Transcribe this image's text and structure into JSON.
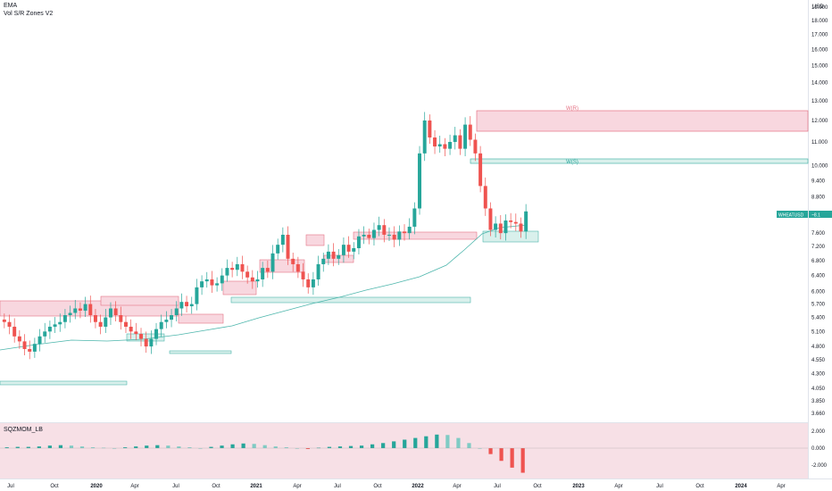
{
  "indicators": {
    "ema_label": "EMA",
    "vol_sr_label": "Vol S/R Zones V2",
    "mom_label": "SQZMOM_LB"
  },
  "currency": "USD",
  "symbol_badge": {
    "label": "WHEATUSD",
    "value": "~8.1",
    "color": "#26a69a"
  },
  "colors": {
    "up": "#26a69a",
    "down": "#ef5350",
    "ema": "#4db6ac",
    "res_zone": "#f8d7df",
    "sup_zone": "#d9f0ec",
    "res_border": "#e57385",
    "sup_border": "#4db6ac",
    "mom_bg": "#f7e0e6"
  },
  "chart_data": [
    {
      "type": "candlestick",
      "title": "",
      "scale": "log",
      "y_tick_labels": [
        "19.000",
        "18.000",
        "17.000",
        "16.000",
        "15.000",
        "14.000",
        "13.000",
        "12.000",
        "11.000",
        "10.000",
        "9.400",
        "8.800",
        "8.200",
        "7.600",
        "7.200",
        "6.800",
        "6.400",
        "6.000",
        "5.700",
        "5.400",
        "5.100",
        "4.800",
        "4.550",
        "4.300",
        "4.050",
        "3.850",
        "3.660"
      ],
      "y_ticks": [
        19,
        18,
        17,
        16,
        15,
        14,
        13,
        12,
        11,
        10,
        9.4,
        8.8,
        8.2,
        7.6,
        7.2,
        6.8,
        6.4,
        6.0,
        5.7,
        5.4,
        5.1,
        4.8,
        4.55,
        4.3,
        4.05,
        3.85,
        3.66
      ],
      "x_tick_labels": [
        "Jul",
        "Oct",
        "2020",
        "Apr",
        "Jul",
        "Oct",
        "2021",
        "Apr",
        "Jul",
        "Oct",
        "2022",
        "Apr",
        "Jul",
        "Oct",
        "2023",
        "Apr",
        "Jul",
        "Oct",
        "2024",
        "Apr"
      ],
      "x_ticks": [
        "2019-07",
        "2019-10",
        "2020-01",
        "2020-04",
        "2020-07",
        "2020-10",
        "2021-01",
        "2021-04",
        "2021-07",
        "2021-10",
        "2022-01",
        "2022-04",
        "2022-07",
        "2022-10",
        "2023-01",
        "2023-04",
        "2023-07",
        "2023-10",
        "2024-01",
        "2024-04"
      ],
      "series": [
        {
          "name": "WHEATUSD",
          "close_weekly_approx": [
            5.3,
            5.2,
            5.0,
            4.9,
            4.75,
            4.7,
            4.85,
            5.0,
            5.1,
            5.2,
            5.25,
            5.3,
            5.45,
            5.5,
            5.6,
            5.55,
            5.7,
            5.45,
            5.3,
            5.2,
            5.4,
            5.6,
            5.45,
            5.3,
            5.2,
            5.1,
            5.05,
            4.95,
            4.8,
            4.95,
            5.15,
            5.3,
            5.35,
            5.45,
            5.6,
            5.75,
            5.65,
            5.7,
            6.1,
            6.25,
            6.3,
            6.15,
            6.2,
            6.4,
            6.6,
            6.55,
            6.7,
            6.5,
            6.35,
            6.25,
            6.3,
            6.6,
            6.5,
            7.0,
            7.25,
            7.55,
            6.85,
            6.7,
            6.5,
            6.3,
            6.1,
            6.3,
            6.7,
            6.85,
            7.05,
            6.85,
            6.95,
            7.25,
            7.05,
            7.15,
            7.5,
            7.55,
            7.45,
            7.7,
            7.85,
            7.55,
            7.55,
            7.4,
            7.65,
            7.6,
            7.8,
            8.4,
            10.5,
            12.0,
            11.2,
            10.8,
            10.9,
            10.7,
            11.0,
            11.3,
            10.7,
            11.8,
            11.1,
            10.5,
            9.2,
            8.4,
            7.7,
            7.9,
            7.6,
            8.0,
            7.95,
            7.9,
            7.65,
            8.3
          ]
        },
        {
          "name": "EMA",
          "approx": [
            4.9,
            5.05,
            5.15,
            5.15,
            5.2,
            5.3,
            5.5,
            5.7,
            5.9,
            6.1,
            6.35,
            6.7,
            7.1,
            7.45,
            7.75
          ]
        }
      ],
      "zones": [
        {
          "kind": "resistance",
          "label": "W(R)",
          "low": 11.7,
          "high": 12.8
        },
        {
          "kind": "support",
          "label": "W(S)",
          "low": 10.25,
          "high": 10.45
        }
      ]
    },
    {
      "type": "bar",
      "title": "SQZMOM_LB",
      "y_tick_labels": [
        "2.000",
        "0.000",
        "-2.000"
      ],
      "y_ticks": [
        2,
        0,
        -2
      ],
      "values_approx": [
        0.1,
        0.15,
        0.15,
        0.2,
        0.3,
        0.35,
        0.3,
        0.2,
        0.1,
        0.05,
        0.0,
        0.1,
        0.2,
        0.3,
        0.35,
        0.3,
        0.2,
        0.1,
        0.0,
        0.15,
        0.3,
        0.45,
        0.55,
        0.5,
        0.35,
        0.2,
        0.1,
        0.0,
        -0.1,
        0.05,
        0.15,
        0.2,
        0.25,
        0.3,
        0.45,
        0.6,
        0.8,
        1.0,
        1.2,
        1.4,
        1.6,
        1.55,
        1.2,
        0.6,
        0.0,
        -0.7,
        -1.5,
        -2.3,
        -2.9
      ]
    }
  ]
}
